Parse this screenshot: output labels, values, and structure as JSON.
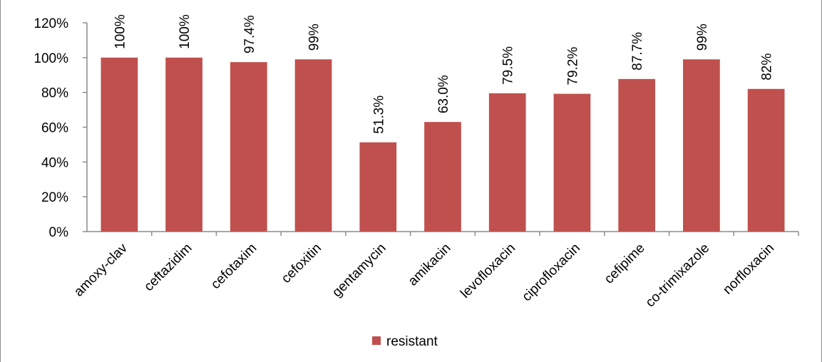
{
  "chart_data": {
    "type": "bar",
    "categories": [
      "amoxy-clav",
      "ceftazidim",
      "cefotaxim",
      "cefoxitin",
      "gentamycin",
      "amikacin",
      "levofloxacin",
      "ciprofloxacin",
      "cefipime",
      "co-trimixazole",
      "norfloxacin"
    ],
    "series": [
      {
        "name": "resistant",
        "color": "#c0504d",
        "values": [
          100,
          100,
          97.4,
          99,
          51.3,
          63.0,
          79.5,
          79.2,
          87.7,
          99,
          82
        ],
        "labels": [
          "100%",
          "100%",
          "97.4%",
          "99%",
          "51.3%",
          "63.0%",
          "79.5%",
          "79.2%",
          "87.7%",
          "99%",
          "82%"
        ]
      }
    ],
    "ylim": [
      0,
      120
    ],
    "yticks": [
      0,
      20,
      40,
      60,
      80,
      100,
      120
    ],
    "ytick_labels": [
      "0%",
      "20%",
      "40%",
      "60%",
      "80%",
      "100%",
      "120%"
    ],
    "grid": false,
    "legend_position": "bottom",
    "title": "",
    "xlabel": "",
    "ylabel": ""
  }
}
